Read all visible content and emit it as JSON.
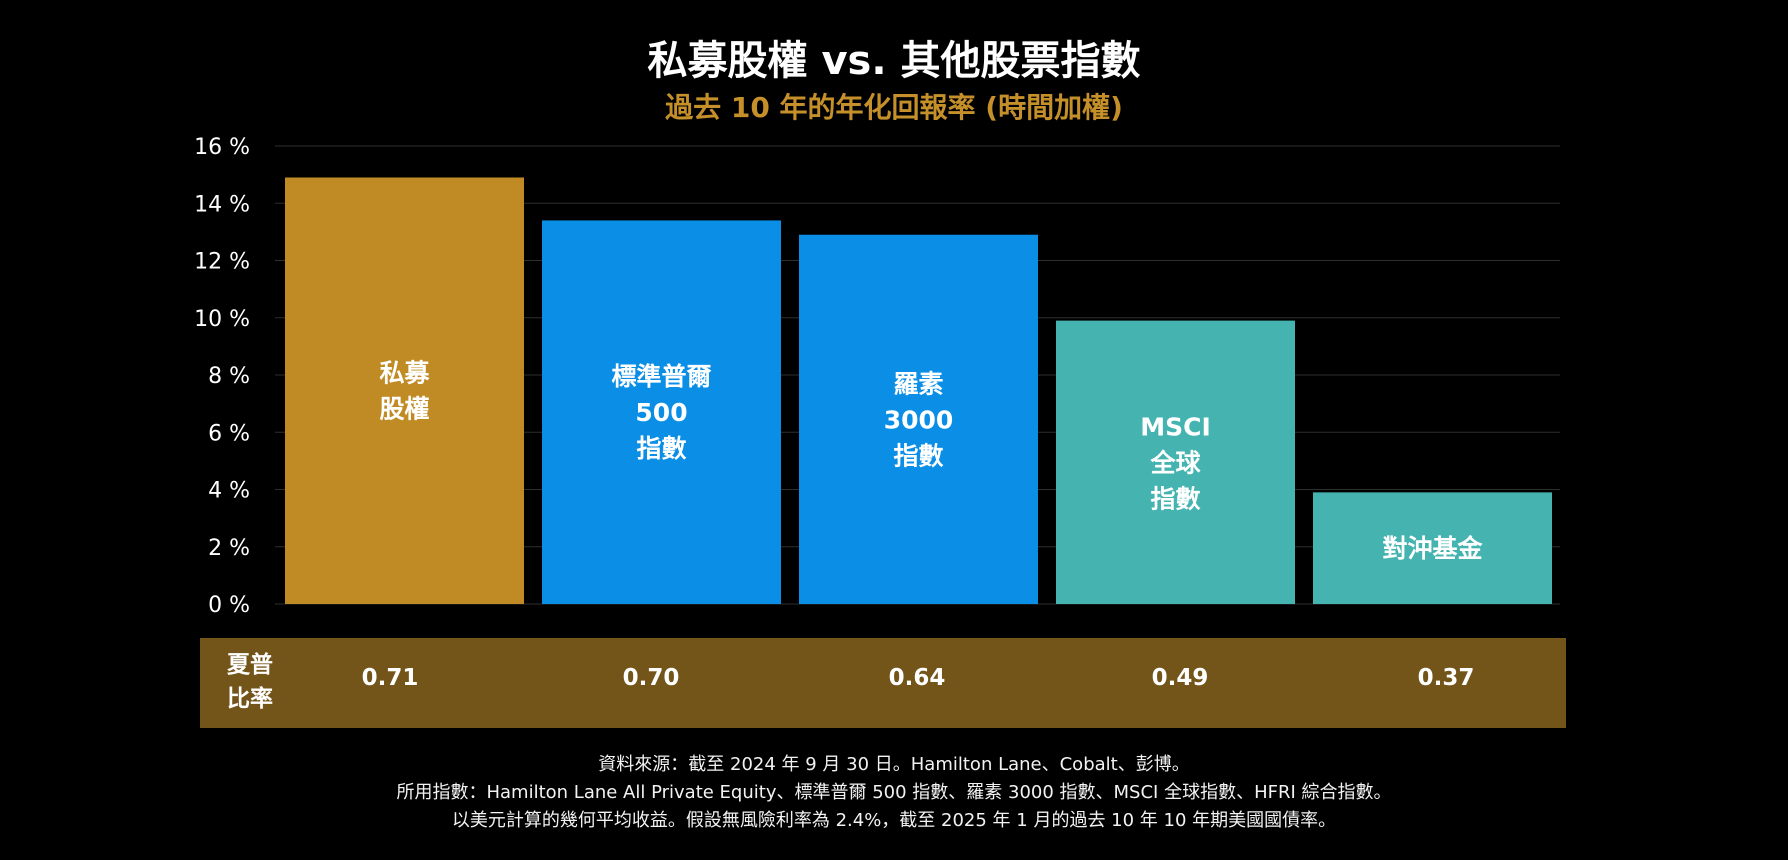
{
  "header": {
    "title": "私募股權 vs. 其他股票指數",
    "subtitle": "過去 10 年的年化回報率 (時間加權)"
  },
  "colors": {
    "private_equity": "#c08b24",
    "us_index": "#0b8ee6",
    "global_hedge": "#45b4b1",
    "sharpe_band": "#735419",
    "subtitle": "#c58f2a",
    "grid": "#2e2e2e"
  },
  "chart_data": {
    "type": "bar",
    "title": "私募股權 vs. 其他股票指數",
    "subtitle": "過去 10 年的年化回報率 (時間加權)",
    "xlabel": "",
    "ylabel": "",
    "ylim": [
      0,
      16
    ],
    "yticks": [
      "0 %",
      "2 %",
      "4 %",
      "6 %",
      "8 %",
      "10 %",
      "12 %",
      "14 %",
      "16 %"
    ],
    "grid": true,
    "legend": "none",
    "categories": [
      "私募\n股權",
      "標準普爾\n500\n指數",
      "羅素\n3000\n指數",
      "MSCI\n全球\n指數",
      "對沖基金"
    ],
    "values": [
      14.9,
      13.4,
      12.9,
      9.9,
      3.9
    ],
    "bar_colors": [
      "#c08b24",
      "#0b8ee6",
      "#0b8ee6",
      "#45b4b1",
      "#45b4b1"
    ]
  },
  "sharpe": {
    "label_line1": "夏普",
    "label_line2": "比率",
    "values": [
      "0.71",
      "0.70",
      "0.64",
      "0.49",
      "0.37"
    ]
  },
  "footnotes": {
    "line1": "資料來源：截至 2024 年 9 月 30 日。Hamilton Lane、Cobalt、彭博。",
    "line2": "所用指數：Hamilton Lane All Private Equity、標準普爾 500 指數、羅素 3000 指數、MSCI 全球指數、HFRI 綜合指數。",
    "line3": "以美元計算的幾何平均收益。假設無風險利率為 2.4%，截至 2025 年 1 月的過去 10 年 10 年期美國國債率。"
  }
}
